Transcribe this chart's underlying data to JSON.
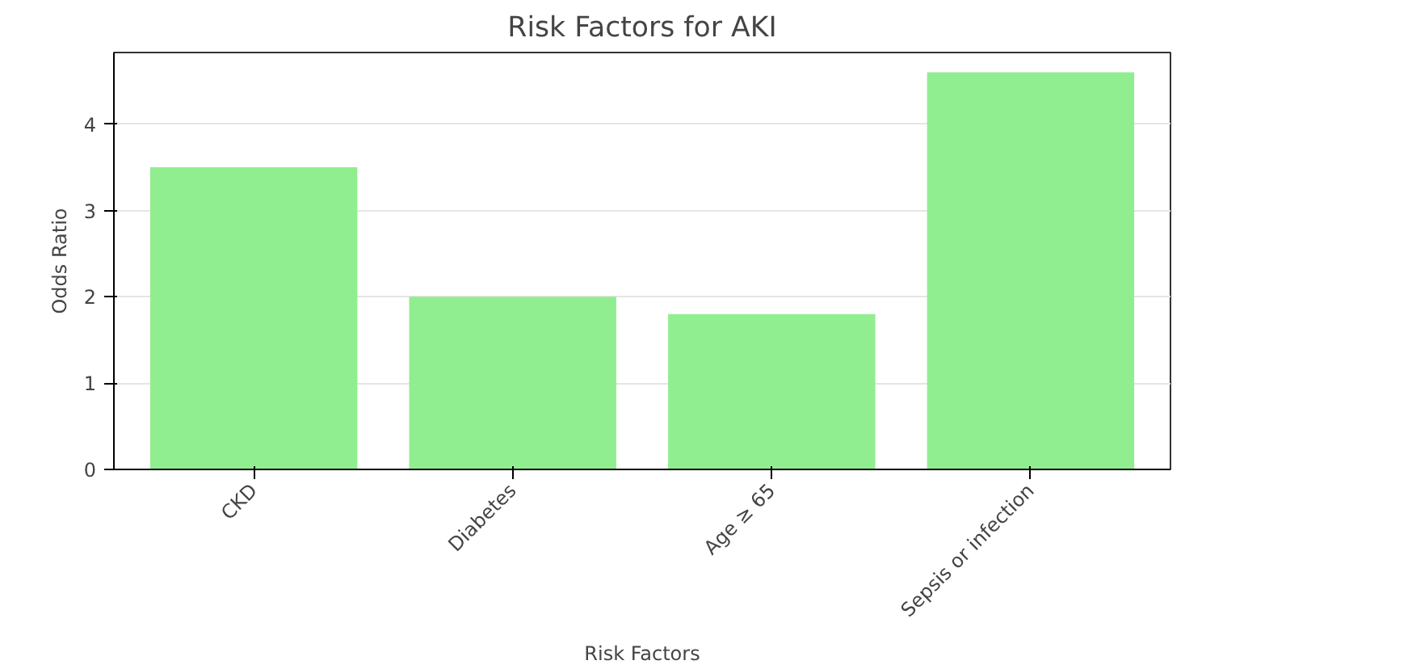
{
  "chart_data": {
    "type": "bar",
    "title": "Risk Factors for AKI",
    "xlabel": "Risk Factors",
    "ylabel": "Odds Ratio",
    "categories": [
      "CKD",
      "Diabetes",
      "Age ≥ 65",
      "Sepsis or infection"
    ],
    "values": [
      3.5,
      2.0,
      1.8,
      4.6
    ],
    "color": "#90ee90",
    "ylim": [
      0,
      4.83
    ],
    "yticks": [
      0,
      1,
      2,
      3,
      4
    ],
    "grid": "y"
  }
}
